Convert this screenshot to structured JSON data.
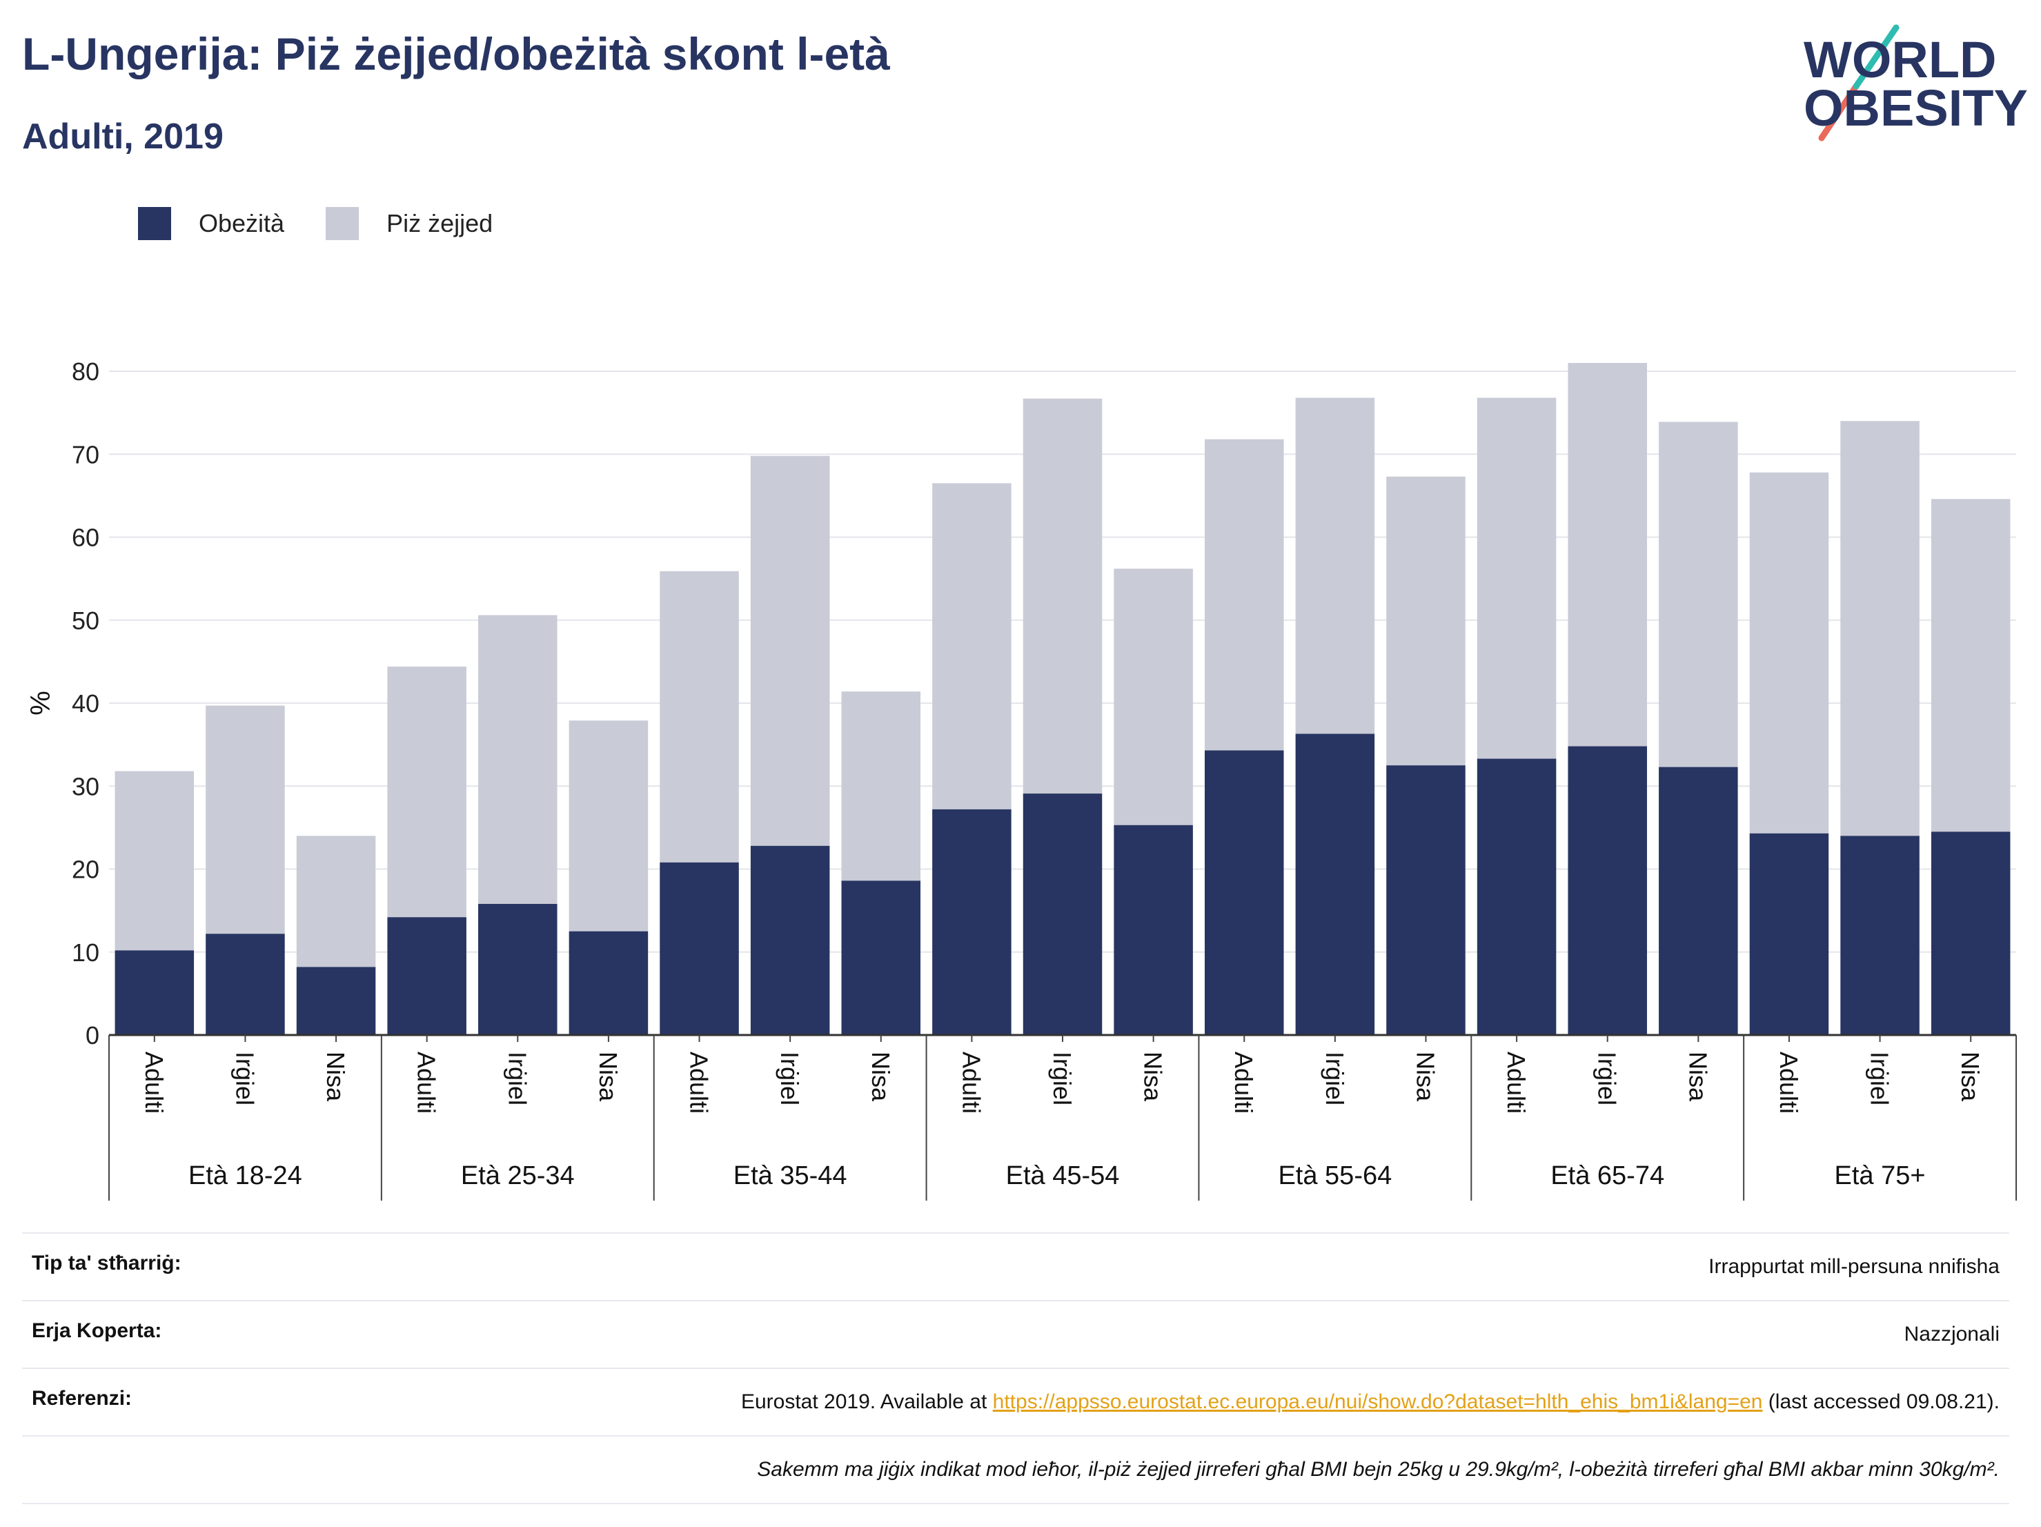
{
  "header": {
    "title": "L-Ungerija: Piż żejjed/obeżità skont l-età",
    "subtitle": "Adulti, 2019"
  },
  "logo": {
    "line1": "WORLD",
    "line2": "OBESITY"
  },
  "colors": {
    "obesity": "#283562",
    "overweight": "#c9cbd6",
    "title": "#283562",
    "link": "#e3a117"
  },
  "legend": {
    "items": [
      {
        "label": "Obeżità",
        "color": "#283562"
      },
      {
        "label": "Piż żejjed",
        "color": "#c9cbd6"
      }
    ]
  },
  "chart_data": {
    "type": "bar",
    "stacked": true,
    "ylabel": "%",
    "ylim": [
      0,
      80
    ],
    "yticks": [
      0,
      10,
      20,
      30,
      40,
      50,
      60,
      70,
      80
    ],
    "grid": true,
    "legend_position": "top-left",
    "groups": [
      "Età 18-24",
      "Età 25-34",
      "Età 35-44",
      "Età 45-54",
      "Età 55-64",
      "Età 65-74",
      "Età 75+"
    ],
    "subcategories": [
      "Adulti",
      "Irġiel",
      "Nisa"
    ],
    "series": [
      {
        "name": "Obeżità",
        "values": [
          10.2,
          12.2,
          8.2,
          14.2,
          15.8,
          12.5,
          20.8,
          22.8,
          18.6,
          27.2,
          29.1,
          25.3,
          34.3,
          36.3,
          32.5,
          33.3,
          34.8,
          32.3,
          24.3,
          24.0,
          24.5
        ]
      },
      {
        "name": "Piż żejjed",
        "values": [
          21.6,
          27.5,
          15.8,
          30.2,
          34.8,
          25.4,
          35.1,
          47.0,
          22.8,
          39.3,
          47.6,
          30.9,
          37.5,
          40.5,
          34.8,
          43.5,
          46.2,
          41.6,
          43.5,
          50.0,
          40.1
        ]
      }
    ]
  },
  "footer": {
    "rows": [
      {
        "key": "Tip ta' stħarriġ:",
        "value": "Irrappurtat mill-persuna nnifisha"
      },
      {
        "key": "Erja Koperta:",
        "value": "Nazzjonali"
      }
    ],
    "references": {
      "key": "Referenzi:",
      "prefix": "Eurostat 2019. Available at ",
      "link": "https://appsso.eurostat.ec.europa.eu/nui/show.do?dataset=hlth_ehis_bm1i&lang=en",
      "suffix": " (last accessed 09.08.21)."
    },
    "note": "Sakemm ma jiġix indikat mod ieħor, il-piż żejjed jirreferi għal BMI bejn 25kg u 29.9kg/m², l-obeżità tirreferi għal BMI akbar minn 30kg/m²."
  }
}
